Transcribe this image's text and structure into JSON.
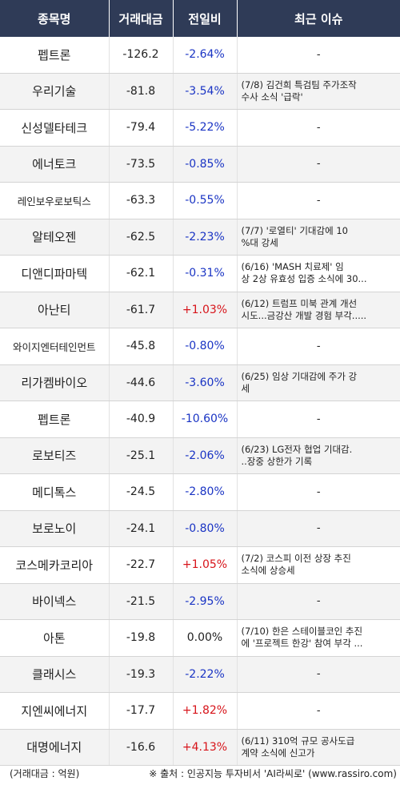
{
  "header": {
    "col_name": "종목명",
    "col_volume": "거래대금",
    "col_change": "전일비",
    "col_issue": "최근 이슈"
  },
  "rows": [
    {
      "name": "펩트론",
      "volume": "-126.2",
      "change": "-2.64%",
      "dir": "down",
      "issue": [
        "-"
      ]
    },
    {
      "name": "우리기술",
      "volume": "-81.8",
      "change": "-3.54%",
      "dir": "down",
      "issue": [
        "(7/8) 김건희 특검팀 주가조작",
        "수사 소식 '급락'"
      ]
    },
    {
      "name": "신성델타테크",
      "volume": "-79.4",
      "change": "-5.22%",
      "dir": "down",
      "issue": [
        "-"
      ]
    },
    {
      "name": "에너토크",
      "volume": "-73.5",
      "change": "-0.85%",
      "dir": "down",
      "issue": [
        "-"
      ]
    },
    {
      "name": "레인보우로보틱스",
      "volume": "-63.3",
      "change": "-0.55%",
      "dir": "down",
      "issue": [
        "-"
      ],
      "small": true
    },
    {
      "name": "알테오젠",
      "volume": "-62.5",
      "change": "-2.23%",
      "dir": "down",
      "issue": [
        "(7/7) '로열티' 기대감에 10",
        "%대 강세"
      ]
    },
    {
      "name": "디앤디파마텍",
      "volume": "-62.1",
      "change": "-0.31%",
      "dir": "down",
      "issue": [
        "(6/16) 'MASH 치료제' 임",
        "상 2상 유효성 입증 소식에 30..."
      ]
    },
    {
      "name": "아난티",
      "volume": "-61.7",
      "change": "+1.03%",
      "dir": "up",
      "issue": [
        "(6/12) 트럼프 미북 관계 개선",
        " 시도...금강산 개발 경험 부각....."
      ]
    },
    {
      "name": "와이지엔터테인먼트",
      "volume": "-45.8",
      "change": "-0.80%",
      "dir": "down",
      "issue": [
        "-"
      ],
      "small": true
    },
    {
      "name": "리가켐바이오",
      "volume": "-44.6",
      "change": "-3.60%",
      "dir": "down",
      "issue": [
        "(6/25) 임상 기대감에 주가 강",
        "세"
      ]
    },
    {
      "name": "펩트론",
      "volume": "-40.9",
      "change": "-10.60%",
      "dir": "down",
      "issue": [
        "-"
      ]
    },
    {
      "name": "로보티즈",
      "volume": "-25.1",
      "change": "-2.06%",
      "dir": "down",
      "issue": [
        "(6/23) LG전자 협업 기대감.",
        "..장중 상한가 기록"
      ]
    },
    {
      "name": "메디톡스",
      "volume": "-24.5",
      "change": "-2.80%",
      "dir": "down",
      "issue": [
        "-"
      ]
    },
    {
      "name": "보로노이",
      "volume": "-24.1",
      "change": "-0.80%",
      "dir": "down",
      "issue": [
        "-"
      ]
    },
    {
      "name": "코스메카코리아",
      "volume": "-22.7",
      "change": "+1.05%",
      "dir": "up",
      "issue": [
        "(7/2) 코스피 이전 상장 추진",
        "소식에 상승세"
      ]
    },
    {
      "name": "바이넥스",
      "volume": "-21.5",
      "change": "-2.95%",
      "dir": "down",
      "issue": [
        "-"
      ]
    },
    {
      "name": "아톤",
      "volume": "-19.8",
      "change": "0.00%",
      "dir": "flat",
      "issue": [
        "(7/10) 한은 스테이블코인 추진",
        "에 '프로젝트 한강' 참여 부각 ..."
      ]
    },
    {
      "name": "클래시스",
      "volume": "-19.3",
      "change": "-2.22%",
      "dir": "down",
      "issue": [
        "-"
      ]
    },
    {
      "name": "지엔씨에너지",
      "volume": "-17.7",
      "change": "+1.82%",
      "dir": "up",
      "issue": [
        "-"
      ]
    },
    {
      "name": "대명에너지",
      "volume": "-16.6",
      "change": "+4.13%",
      "dir": "up",
      "issue": [
        "(6/11) 310억 규모 공사도급",
        " 계약 소식에 신고가"
      ]
    }
  ],
  "footer": {
    "unit": "(거래대금 : 억원)",
    "source": "※ 출처 : 인공지능 투자비서 'AI라씨로' (www.rassiro.com)"
  },
  "colors": {
    "header_bg": "#2f3b57",
    "down": "#1a34c4",
    "up": "#d7141a"
  }
}
